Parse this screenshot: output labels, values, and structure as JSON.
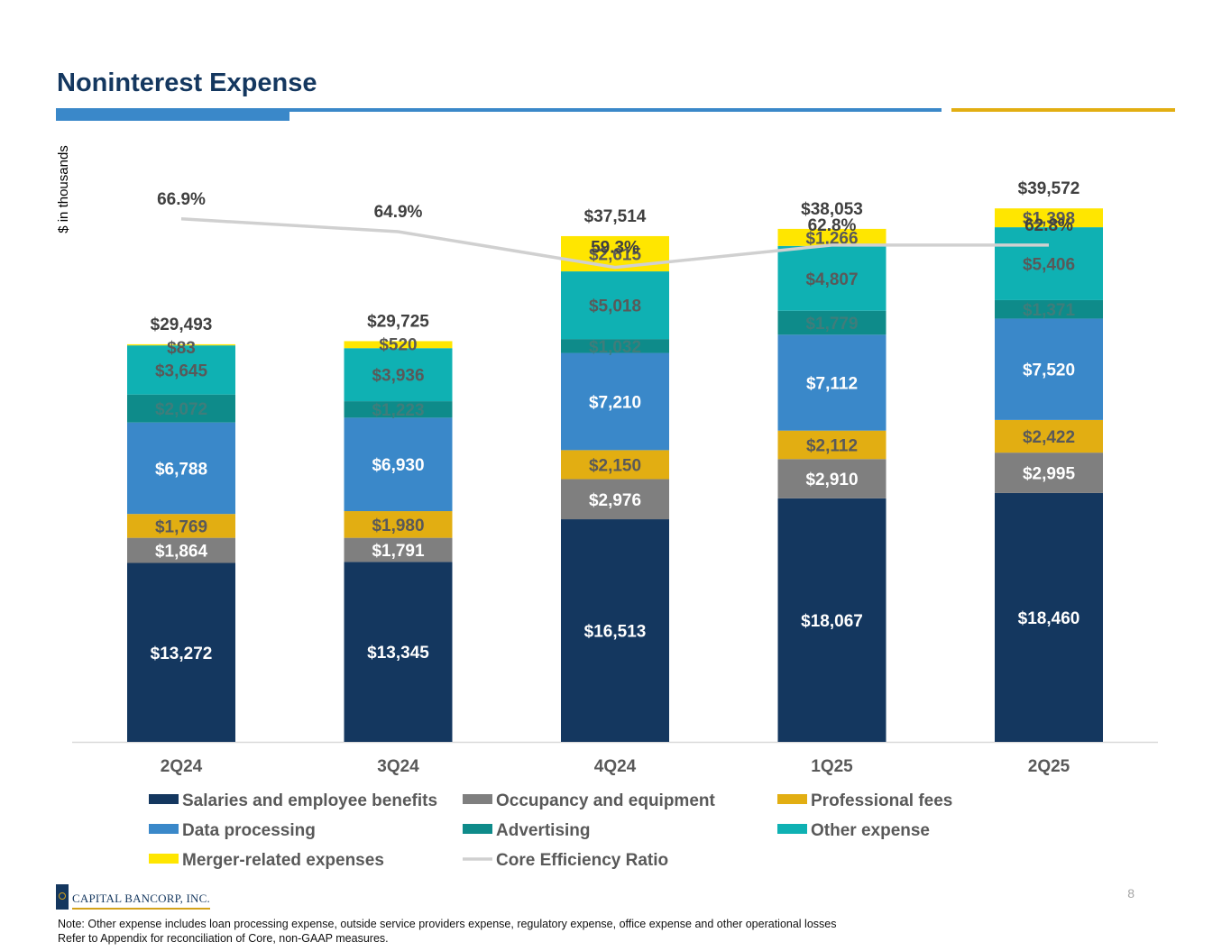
{
  "page": {
    "title": "Noninterest Expense",
    "page_number": "8",
    "logo_text": "CAPITAL BANCORP, INC.",
    "notes": [
      "Note: Other expense includes loan processing expense, outside service providers expense, regulatory expense, office expense and other operational losses",
      "Refer to Appendix for reconciliation of Core, non-GAAP measures."
    ],
    "accent_colors": {
      "title": "#14375f",
      "rule_blue": "#3a88c9",
      "rule_gold": "#e2ae12"
    }
  },
  "chart_data": {
    "type": "bar",
    "stacked": true,
    "ylabel": "$ in thousands",
    "ylim": [
      0,
      45000
    ],
    "grid": false,
    "legend_position": "bottom",
    "categories": [
      "2Q24",
      "3Q24",
      "4Q24",
      "1Q25",
      "2Q25"
    ],
    "series": [
      {
        "name": "Salaries and employee benefits",
        "color": "#14375f",
        "label_color": "#ffffff",
        "values": [
          13272,
          13345,
          16513,
          18067,
          18460
        ],
        "labels": [
          "$13,272",
          "$13,345",
          "$16,513",
          "$18,067",
          "$18,460"
        ]
      },
      {
        "name": "Occupancy and equipment",
        "color": "#7f7f7f",
        "label_color": "#ffffff",
        "values": [
          1864,
          1791,
          2976,
          2910,
          2995
        ],
        "labels": [
          "$1,864",
          "$1,791",
          "$2,976",
          "$2,910",
          "$2,995"
        ]
      },
      {
        "name": "Professional fees",
        "color": "#e2ae12",
        "label_color": "#595959",
        "values": [
          1769,
          1980,
          2150,
          2112,
          2422
        ],
        "labels": [
          "$1,769",
          "$1,980",
          "$2,150",
          "$2,112",
          "$2,422"
        ]
      },
      {
        "name": "Data processing",
        "color": "#3a88c9",
        "label_color": "#ffffff",
        "values": [
          6788,
          6930,
          7210,
          7112,
          7520
        ],
        "labels": [
          "$6,788",
          "$6,930",
          "$7,210",
          "$7,112",
          "$7,520"
        ]
      },
      {
        "name": "Advertising",
        "color": "#0e8b8a",
        "label_color": "#3f7d7b",
        "values": [
          2072,
          1223,
          1032,
          1779,
          1371
        ],
        "labels": [
          "$2,072",
          "$1,223",
          "$1,032",
          "$1,779",
          "$1,371"
        ]
      },
      {
        "name": "Other expense",
        "color": "#0fb1b3",
        "label_color": "#595959",
        "values": [
          3645,
          3936,
          5018,
          4807,
          5406
        ],
        "labels": [
          "$3,645",
          "$3,936",
          "$5,018",
          "$4,807",
          "$5,406"
        ]
      },
      {
        "name": "Merger-related expenses",
        "color": "#ffe600",
        "label_color": "#595959",
        "values": [
          83,
          520,
          2615,
          1266,
          1398
        ],
        "labels": [
          "$83",
          "$520",
          "$2,615",
          "$1,266",
          "$1,398"
        ]
      }
    ],
    "totals": [
      "$29,493",
      "$29,725",
      "$37,514",
      "$38,053",
      "$39,572"
    ],
    "line_series": {
      "name": "Core Efficiency Ratio",
      "color": "#d0d0d0",
      "values": [
        66.9,
        64.9,
        59.3,
        62.8,
        62.8
      ],
      "labels": [
        "66.9%",
        "64.9%",
        "59.3%",
        "62.8%",
        "62.8%"
      ],
      "ylim": [
        -15,
        80
      ]
    },
    "legend_order": [
      "Salaries and employee benefits",
      "Occupancy and equipment",
      "Professional fees",
      "Data processing",
      "Advertising",
      "Other expense",
      "Merger-related expenses",
      "Core Efficiency Ratio"
    ]
  }
}
